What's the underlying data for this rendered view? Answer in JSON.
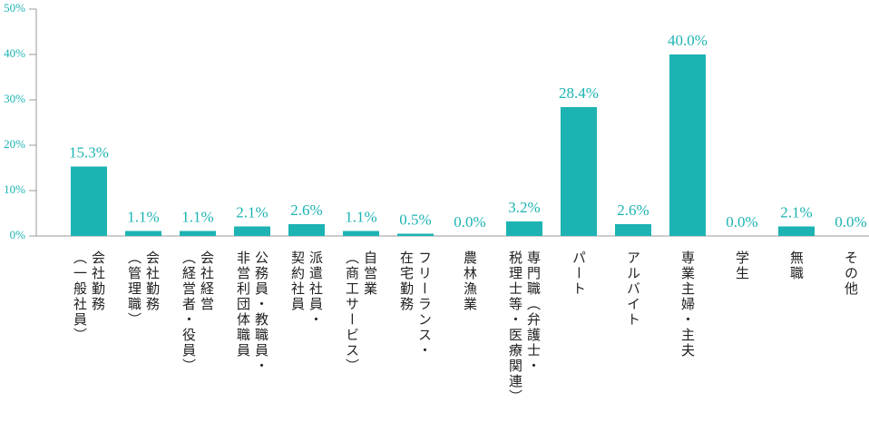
{
  "chart_data": {
    "type": "bar",
    "categories": [
      "会社勤務\n（一般社員）",
      "会社勤務\n（管理職）",
      "会社経営\n（経営者・役員）",
      "公務員・教職員・\n非営利団体職員",
      "派遣社員・\n契約社員",
      "自営業\n（商工サービス）",
      "フリーランス・\n在宅勤務",
      "農林漁業",
      "専門職（弁護士・\n税理士等・医療関連）",
      "パート",
      "アルバイト",
      "専業主婦・主夫",
      "学生",
      "無職",
      "その他"
    ],
    "values": [
      15.3,
      1.1,
      1.1,
      2.1,
      2.6,
      1.1,
      0.5,
      0.0,
      3.2,
      28.4,
      2.6,
      40.0,
      0.0,
      2.1,
      0.0
    ],
    "value_labels": [
      "15.3%",
      "1.1%",
      "1.1%",
      "2.1%",
      "2.6%",
      "1.1%",
      "0.5%",
      "0.0%",
      "3.2%",
      "28.4%",
      "2.6%",
      "40.0%",
      "0.0%",
      "2.1%",
      "0.0%"
    ],
    "color": "#1db3b3",
    "ylim": [
      0,
      50
    ],
    "yticks": [
      {
        "value": 0,
        "label": "0%"
      },
      {
        "value": 10,
        "label": "10%"
      },
      {
        "value": 20,
        "label": "20%"
      },
      {
        "value": 30,
        "label": "30%"
      },
      {
        "value": 40,
        "label": "40%"
      },
      {
        "value": 50,
        "label": "50%"
      }
    ],
    "grid": false
  }
}
